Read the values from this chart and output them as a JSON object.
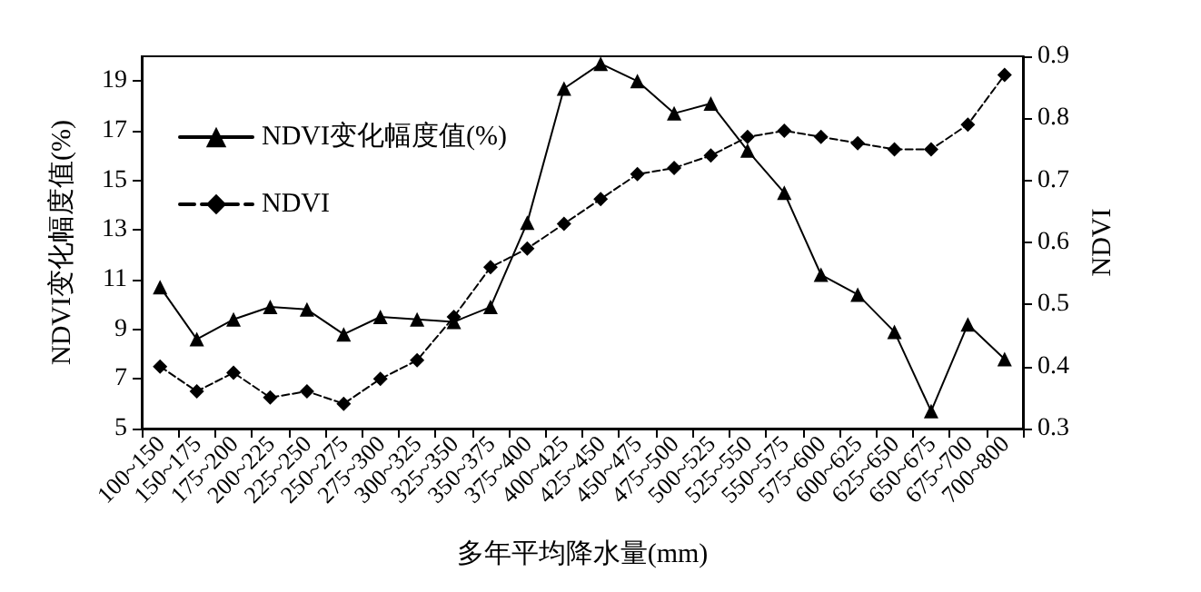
{
  "chart_data": {
    "type": "line",
    "xlabel": "多年平均降水量(mm)",
    "ylabel": "NDVI变化幅度值(%)",
    "y2label": "NDVI",
    "categories": [
      "100~150",
      "150~175",
      "175~200",
      "200~225",
      "225~250",
      "250~275",
      "275~300",
      "300~325",
      "325~350",
      "350~375",
      "375~400",
      "400~425",
      "425~450",
      "450~475",
      "475~500",
      "500~525",
      "525~550",
      "550~575",
      "575~600",
      "600~625",
      "625~650",
      "650~675",
      "675~700",
      "700~800"
    ],
    "series": [
      {
        "name": "NDVI变化幅度值(%)",
        "color": "#000000",
        "marker": "triangle",
        "line_style": "solid",
        "values": [
          10.7,
          8.6,
          9.4,
          9.9,
          9.8,
          8.8,
          9.5,
          9.4,
          9.3,
          9.9,
          13.3,
          18.7,
          19.7,
          19.0,
          17.7,
          18.1,
          16.2,
          14.5,
          11.2,
          10.4,
          8.9,
          5.7,
          9.2,
          7.8
        ]
      },
      {
        "name": "NDVI",
        "color": "#000000",
        "marker": "diamond",
        "line_style": "dashed",
        "axis": "y2",
        "values": [
          0.4,
          0.36,
          0.39,
          0.35,
          0.36,
          0.34,
          0.38,
          0.41,
          0.48,
          0.56,
          0.59,
          0.63,
          0.67,
          0.71,
          0.72,
          0.74,
          0.77,
          0.78,
          0.77,
          0.76,
          0.75,
          0.75,
          0.79,
          0.87
        ]
      }
    ],
    "ylim": [
      5,
      20
    ],
    "yticks": [
      5,
      7,
      9,
      11,
      13,
      15,
      17,
      19
    ],
    "y2lim": [
      0.3,
      0.9
    ],
    "y2ticks": [
      0.3,
      0.4,
      0.5,
      0.6,
      0.7,
      0.8,
      0.9
    ],
    "grid": false,
    "legend": "top left"
  }
}
